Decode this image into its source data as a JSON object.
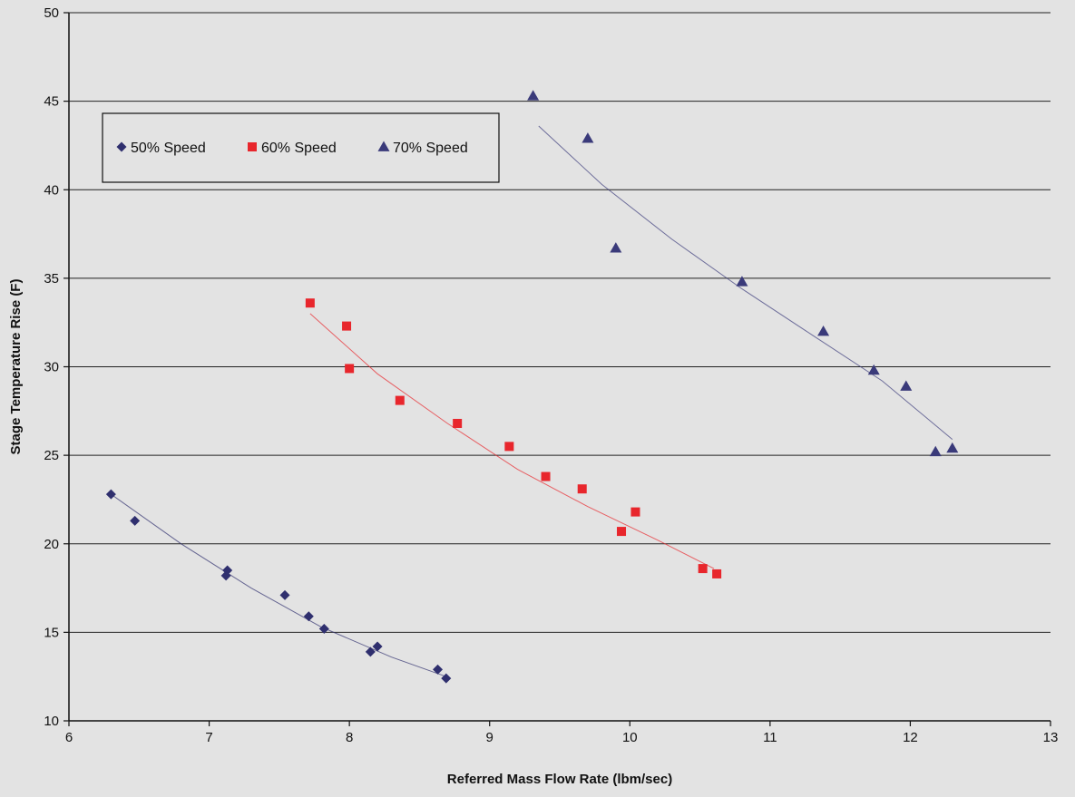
{
  "chart_data": {
    "type": "scatter",
    "title": "",
    "xlabel": "Referred Mass Flow Rate (lbm/sec)",
    "ylabel": "Stage Temperature Rise (F)",
    "xlim": [
      6,
      13
    ],
    "ylim": [
      10,
      50
    ],
    "xticks": [
      6,
      7,
      8,
      9,
      10,
      11,
      12,
      13
    ],
    "yticks": [
      10,
      15,
      20,
      25,
      30,
      35,
      40,
      45,
      50
    ],
    "grid": "horizontal",
    "legend_position": "top-left",
    "series": [
      {
        "name": "50% Speed",
        "marker": "diamond",
        "color": "#2f2f6e",
        "points": [
          [
            6.3,
            22.8
          ],
          [
            6.47,
            21.3
          ],
          [
            7.12,
            18.2
          ],
          [
            7.13,
            18.5
          ],
          [
            7.54,
            17.1
          ],
          [
            7.71,
            15.9
          ],
          [
            7.82,
            15.2
          ],
          [
            8.15,
            13.9
          ],
          [
            8.2,
            14.2
          ],
          [
            8.63,
            12.9
          ],
          [
            8.69,
            12.4
          ]
        ],
        "trend": [
          [
            6.3,
            22.8
          ],
          [
            6.8,
            20.0
          ],
          [
            7.3,
            17.5
          ],
          [
            7.8,
            15.3
          ],
          [
            8.3,
            13.6
          ],
          [
            8.69,
            12.5
          ]
        ]
      },
      {
        "name": "60% Speed",
        "marker": "square",
        "color": "#e8262c",
        "points": [
          [
            7.72,
            33.6
          ],
          [
            7.98,
            32.3
          ],
          [
            8.0,
            29.9
          ],
          [
            8.36,
            28.1
          ],
          [
            8.77,
            26.8
          ],
          [
            9.14,
            25.5
          ],
          [
            9.4,
            23.8
          ],
          [
            9.66,
            23.1
          ],
          [
            9.94,
            20.7
          ],
          [
            10.04,
            21.8
          ],
          [
            10.52,
            18.6
          ],
          [
            10.62,
            18.3
          ]
        ],
        "trend": [
          [
            7.72,
            33.0
          ],
          [
            8.2,
            29.6
          ],
          [
            8.7,
            26.8
          ],
          [
            9.2,
            24.2
          ],
          [
            9.7,
            22.1
          ],
          [
            10.2,
            20.2
          ],
          [
            10.6,
            18.6
          ]
        ]
      },
      {
        "name": "70% Speed",
        "marker": "triangle",
        "color": "#3a3a7a",
        "points": [
          [
            9.31,
            45.3
          ],
          [
            9.7,
            42.9
          ],
          [
            9.9,
            36.7
          ],
          [
            10.8,
            34.8
          ],
          [
            11.38,
            32.0
          ],
          [
            11.74,
            29.8
          ],
          [
            11.97,
            28.9
          ],
          [
            12.18,
            25.2
          ],
          [
            12.3,
            25.4
          ]
        ],
        "trend": [
          [
            9.35,
            43.6
          ],
          [
            9.8,
            40.3
          ],
          [
            10.3,
            37.2
          ],
          [
            10.8,
            34.4
          ],
          [
            11.3,
            31.8
          ],
          [
            11.8,
            29.2
          ],
          [
            12.3,
            25.9
          ]
        ]
      }
    ]
  }
}
